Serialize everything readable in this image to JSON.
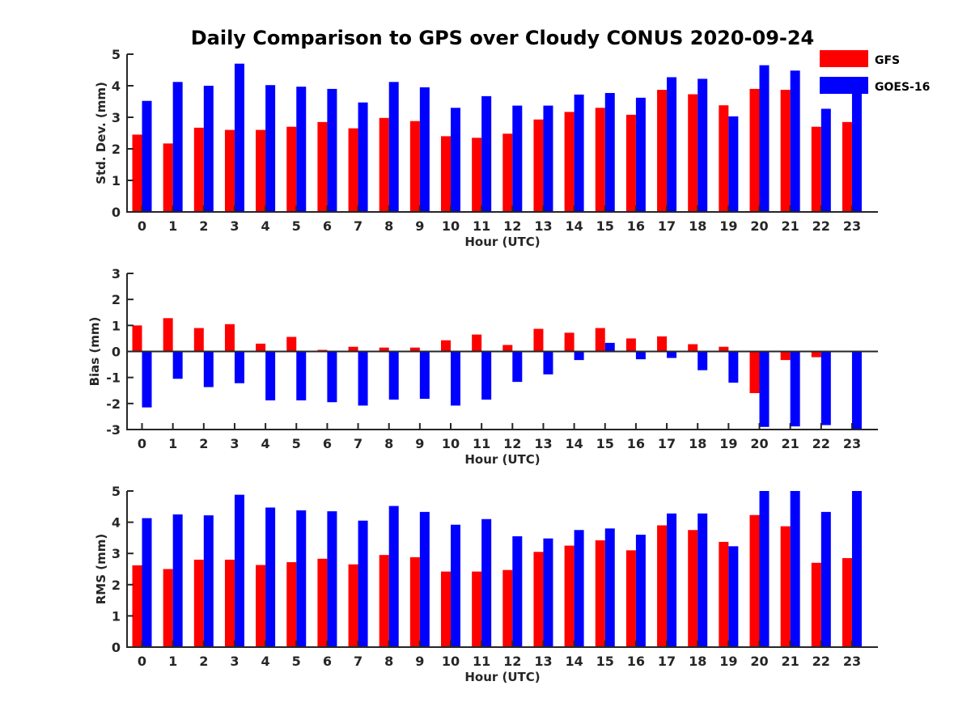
{
  "title": "Daily Comparison to GPS over Cloudy CONUS 2020-09-24",
  "colors": {
    "GFS": "#ff0000",
    "GOES-16": "#0000ff",
    "axis": "#262626"
  },
  "legend": {
    "placement": "top-right",
    "entries": [
      "GFS",
      "GOES-16"
    ]
  },
  "chart_data": [
    {
      "type": "bar",
      "ylabel": "Std. Dev. (mm)",
      "xlabel": "Hour (UTC)",
      "ylim": [
        0,
        5
      ],
      "yticks": [
        0,
        1,
        2,
        3,
        4,
        5
      ],
      "grid": false,
      "categories": [
        "0",
        "1",
        "2",
        "3",
        "4",
        "5",
        "6",
        "7",
        "8",
        "9",
        "10",
        "11",
        "12",
        "13",
        "14",
        "15",
        "16",
        "17",
        "18",
        "19",
        "20",
        "21",
        "22",
        "23"
      ],
      "series": [
        {
          "name": "GFS",
          "values": [
            2.45,
            2.17,
            2.67,
            2.6,
            2.6,
            2.7,
            2.85,
            2.65,
            2.98,
            2.88,
            2.4,
            2.35,
            2.48,
            2.93,
            3.17,
            3.3,
            3.08,
            3.87,
            3.73,
            3.38,
            3.9,
            3.87,
            2.7,
            2.85
          ]
        },
        {
          "name": "GOES-16",
          "values": [
            3.52,
            4.12,
            4.0,
            4.7,
            4.02,
            3.97,
            3.9,
            3.47,
            4.12,
            3.95,
            3.3,
            3.67,
            3.37,
            3.37,
            3.72,
            3.77,
            3.62,
            4.27,
            4.22,
            3.03,
            4.65,
            4.48,
            3.27,
            3.85
          ]
        }
      ]
    },
    {
      "type": "bar",
      "ylabel": "Bias (mm)",
      "xlabel": "Hour (UTC)",
      "ylim": [
        -3,
        3
      ],
      "yticks": [
        -3,
        -2,
        -1,
        0,
        1,
        2,
        3
      ],
      "grid": false,
      "categories": [
        "0",
        "1",
        "2",
        "3",
        "4",
        "5",
        "6",
        "7",
        "8",
        "9",
        "10",
        "11",
        "12",
        "13",
        "14",
        "15",
        "16",
        "17",
        "18",
        "19",
        "20",
        "21",
        "22",
        "23"
      ],
      "series": [
        {
          "name": "GFS",
          "values": [
            1.0,
            1.28,
            0.9,
            1.05,
            0.3,
            0.56,
            0.06,
            0.18,
            0.15,
            0.15,
            0.43,
            0.65,
            0.25,
            0.87,
            0.72,
            0.9,
            0.5,
            0.58,
            0.28,
            0.18,
            -1.6,
            -0.33,
            -0.22,
            -0.02
          ]
        },
        {
          "name": "GOES-16",
          "values": [
            -2.15,
            -1.05,
            -1.37,
            -1.22,
            -1.88,
            -1.88,
            -1.95,
            -2.08,
            -1.85,
            -1.82,
            -2.08,
            -1.85,
            -1.17,
            -0.88,
            -0.33,
            0.33,
            -0.3,
            -0.25,
            -0.72,
            -1.2,
            -2.9,
            -2.88,
            -2.83,
            -3.0
          ]
        }
      ]
    },
    {
      "type": "bar",
      "ylabel": "RMS (mm)",
      "xlabel": "Hour (UTC)",
      "ylim": [
        0,
        5
      ],
      "yticks": [
        0,
        1,
        2,
        3,
        4,
        5
      ],
      "grid": false,
      "categories": [
        "0",
        "1",
        "2",
        "3",
        "4",
        "5",
        "6",
        "7",
        "8",
        "9",
        "10",
        "11",
        "12",
        "13",
        "14",
        "15",
        "16",
        "17",
        "18",
        "19",
        "20",
        "21",
        "22",
        "23"
      ],
      "series": [
        {
          "name": "GFS",
          "values": [
            2.62,
            2.5,
            2.8,
            2.8,
            2.63,
            2.72,
            2.83,
            2.65,
            2.95,
            2.88,
            2.42,
            2.42,
            2.47,
            3.05,
            3.25,
            3.42,
            3.1,
            3.9,
            3.75,
            3.37,
            4.23,
            3.87,
            2.7,
            2.85
          ]
        },
        {
          "name": "GOES-16",
          "values": [
            4.13,
            4.25,
            4.22,
            4.88,
            4.47,
            4.38,
            4.35,
            4.05,
            4.52,
            4.33,
            3.92,
            4.1,
            3.55,
            3.48,
            3.75,
            3.8,
            3.6,
            4.28,
            4.28,
            3.23,
            5.0,
            5.0,
            4.33,
            5.0
          ]
        }
      ]
    }
  ]
}
